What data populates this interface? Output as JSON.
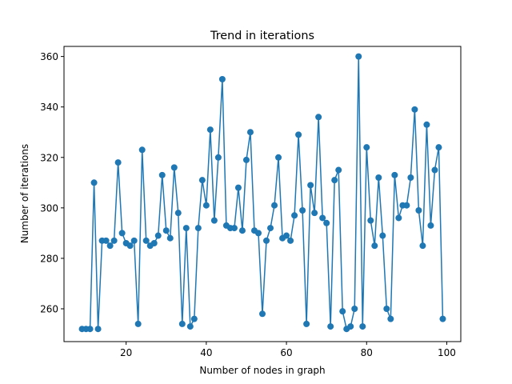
{
  "chart_data": {
    "type": "line",
    "title": "Trend in iterations",
    "xlabel": "Number of nodes in graph",
    "ylabel": "Number of iterations",
    "xlim": [
      4.5,
      103.5
    ],
    "ylim": [
      247,
      364
    ],
    "xticks": [
      20,
      40,
      60,
      80,
      100
    ],
    "yticks": [
      260,
      280,
      300,
      320,
      340,
      360
    ],
    "xtick_labels": [
      "20",
      "40",
      "60",
      "80",
      "100"
    ],
    "ytick_labels": [
      "260",
      "280",
      "300",
      "320",
      "340",
      "360"
    ],
    "grid": false,
    "legend": "none",
    "marker": "circle",
    "line_color": "#1f77b4",
    "series": [
      {
        "x": [
          9,
          10,
          11,
          12,
          13,
          14,
          15,
          16,
          17,
          18,
          19,
          20,
          21,
          22,
          23,
          24,
          25,
          26,
          27,
          28,
          29,
          30,
          31,
          32,
          33,
          34,
          35,
          36,
          37,
          38,
          39,
          40,
          41,
          42,
          43,
          44,
          45,
          46,
          47,
          48,
          49,
          50,
          51,
          52,
          53,
          54,
          55,
          56,
          57,
          58,
          59,
          60,
          61,
          62,
          63,
          64,
          65,
          66,
          67,
          68,
          69,
          70,
          71,
          72,
          73,
          74,
          75,
          76,
          77,
          78,
          79,
          80,
          81,
          82,
          83,
          84,
          85,
          86,
          87,
          88,
          89,
          90,
          91,
          92,
          93,
          94,
          95,
          96,
          97,
          98,
          99
        ],
        "values": [
          252,
          252,
          252,
          310,
          252,
          287,
          287,
          285,
          287,
          318,
          290,
          286,
          285,
          287,
          254,
          323,
          287,
          285,
          286,
          289,
          313,
          291,
          288,
          316,
          298,
          254,
          292,
          253,
          256,
          292,
          311,
          301,
          331,
          295,
          320,
          351,
          293,
          292,
          292,
          308,
          291,
          319,
          330,
          291,
          290,
          258,
          287,
          292,
          301,
          320,
          288,
          289,
          287,
          297,
          329,
          299,
          254,
          309,
          298,
          336,
          296,
          294,
          253,
          311,
          315,
          259,
          252,
          253,
          260,
          360,
          253,
          324,
          295,
          285,
          312,
          289,
          260,
          256,
          313,
          296,
          301,
          301,
          312,
          339,
          299,
          285,
          333,
          293,
          315,
          324,
          256
        ]
      }
    ]
  }
}
